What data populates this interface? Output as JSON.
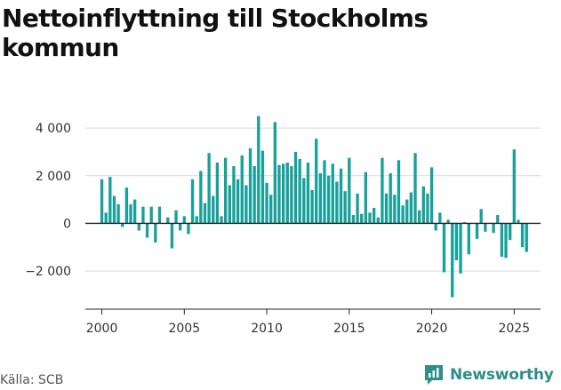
{
  "chart_data": {
    "type": "bar",
    "title": "Nettoinflyttning till Stockholms kommun",
    "source": "Källa: SCB",
    "brand": "Newsworthy",
    "bar_color": "#17a19a",
    "brand_color": "#2b8f8a",
    "grid": true,
    "xlim": [
      1999.0,
      2026.6
    ],
    "ylim": [
      -3600,
      4600
    ],
    "x_ticks": [
      2000,
      2005,
      2010,
      2015,
      2020,
      2025
    ],
    "y_ticks": [
      -2000,
      0,
      2000,
      4000
    ],
    "x_tick_labels": [
      "2000",
      "2005",
      "2010",
      "2015",
      "2020",
      "2025"
    ],
    "y_tick_labels": [
      "−2 000",
      "0",
      "2 000",
      "4 000"
    ],
    "frequency": "quarterly",
    "start_year": 2000,
    "values": [
      1850,
      450,
      1950,
      1150,
      800,
      -150,
      1500,
      800,
      1000,
      -300,
      700,
      -600,
      700,
      -800,
      700,
      0,
      250,
      -1050,
      550,
      -300,
      300,
      -450,
      1850,
      300,
      2200,
      850,
      2950,
      1150,
      2550,
      300,
      2750,
      1600,
      2400,
      1850,
      2850,
      1600,
      3150,
      2400,
      4500,
      3050,
      1700,
      1200,
      4250,
      2450,
      2500,
      2550,
      2400,
      3000,
      2700,
      1900,
      2550,
      1400,
      3550,
      2100,
      2650,
      2000,
      2500,
      1750,
      2300,
      1350,
      2750,
      350,
      1250,
      400,
      2150,
      450,
      650,
      250,
      2750,
      1250,
      2100,
      1200,
      2650,
      750,
      1000,
      1300,
      2950,
      550,
      1550,
      1250,
      2350,
      -300,
      450,
      -2050,
      150,
      -3100,
      -1550,
      -2100,
      50,
      -1300,
      0,
      -650,
      600,
      -350,
      0,
      -400,
      350,
      -1400,
      -1450,
      -700,
      3100,
      150,
      -1000,
      -1200
    ]
  }
}
